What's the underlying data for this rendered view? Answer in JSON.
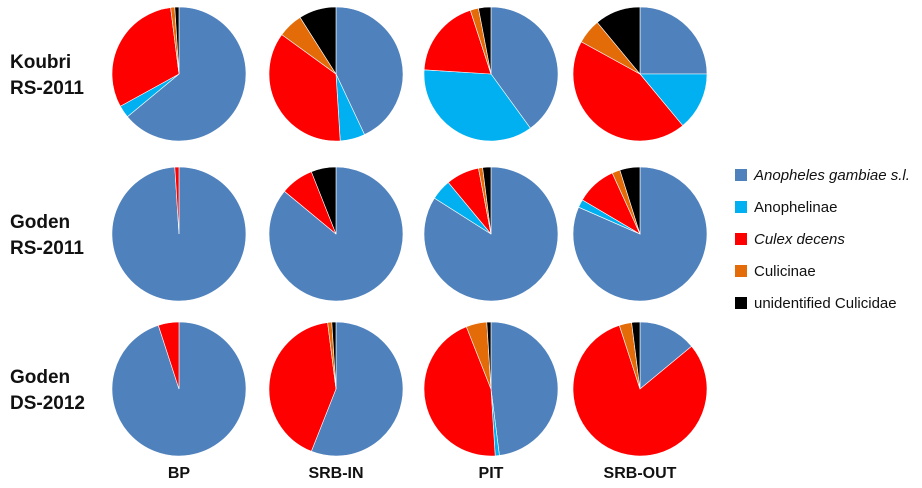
{
  "chart_data": {
    "type": "pie",
    "rows": [
      "Koubri\nRS-2011",
      "Goden\nRS-2011",
      "Goden\nDS-2012"
    ],
    "columns": [
      "BP",
      "SRB-IN",
      "PIT",
      "SRB-OUT"
    ],
    "legend": [
      {
        "name": "Anopheles gambiae s.l.",
        "color": "#4f81bd",
        "italic": true
      },
      {
        "name": "Anophelinae",
        "color": "#00b0f0",
        "italic": false
      },
      {
        "name": "Culex decens",
        "color": "#ff0000",
        "italic": true
      },
      {
        "name": "Culicinae",
        "color": "#e36c09",
        "italic": false
      },
      {
        "name": "unidentified Culicidae",
        "color": "#000000",
        "italic": false
      }
    ],
    "legend_position": "right",
    "pies": [
      [
        [
          64,
          3,
          31,
          1,
          1
        ],
        [
          43,
          6,
          36,
          6,
          9
        ],
        [
          40,
          36,
          19,
          2,
          3
        ],
        [
          25,
          14,
          44,
          6,
          11
        ]
      ],
      [
        [
          99,
          0,
          1,
          0,
          0
        ],
        [
          86,
          0,
          8,
          0,
          6
        ],
        [
          84,
          5,
          8,
          1,
          2
        ],
        [
          84,
          2,
          10,
          2,
          5
        ]
      ],
      [
        [
          95,
          0,
          5,
          0,
          0
        ],
        [
          56,
          0,
          42,
          1,
          1
        ],
        [
          48,
          1,
          45,
          5,
          1
        ],
        [
          14,
          0,
          81,
          3,
          2
        ]
      ]
    ]
  }
}
